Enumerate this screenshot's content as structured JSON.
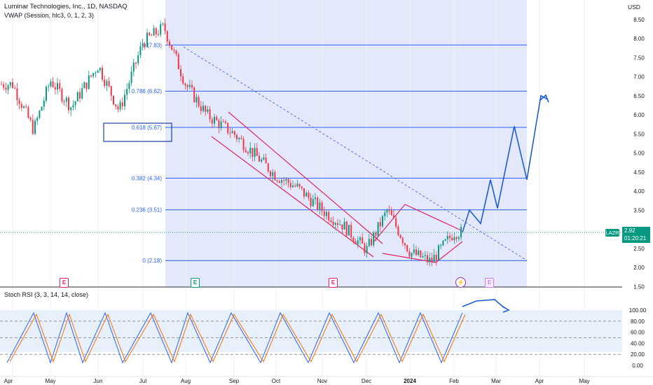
{
  "header": {
    "title": "Luminar Technologies, Inc., 1D, NASDAQ",
    "indicator": "VWAP (Session, hlc3, 0, 1, 2, 3)"
  },
  "currency": "USD",
  "price_axis": {
    "ticks": [
      "8.50",
      "8.00",
      "7.50",
      "7.00",
      "6.50",
      "6.00",
      "5.50",
      "5.00",
      "4.50",
      "4.00",
      "3.50",
      "3.00",
      "2.50",
      "2.00",
      "1.50"
    ]
  },
  "time_axis": {
    "labels": [
      "Apr",
      "May",
      "Jun",
      "Jul",
      "Aug",
      "Sep",
      "Oct",
      "Nov",
      "Dec",
      "2024",
      "Jan",
      "Feb",
      "Mar",
      "Apr",
      "May"
    ]
  },
  "symbol_tag": {
    "symbol": "LAZR",
    "price": "2.92",
    "countdown": "01:20:21",
    "color": "#089981"
  },
  "fib_levels": [
    {
      "label": "1 (7.83)",
      "value": 7.83
    },
    {
      "label": "0.786 (6.62)",
      "value": 6.62
    },
    {
      "label": "0.618 (5.67)",
      "value": 5.67
    },
    {
      "label": "0.382 (4.34)",
      "value": 4.34
    },
    {
      "label": "0.236 (3.51)",
      "value": 3.51
    },
    {
      "label": "0 (2.18)",
      "value": 2.18
    }
  ],
  "events": [
    {
      "label": "E",
      "color": "#e91e63",
      "style": "outline"
    },
    {
      "label": "E",
      "color": "#089981",
      "style": "outline"
    },
    {
      "label": "E",
      "color": "#e91e63",
      "style": "outline"
    },
    {
      "label": "⚡",
      "color": "#9c27b0",
      "style": "round"
    },
    {
      "label": "E",
      "color": "#c77dff",
      "style": "outline"
    }
  ],
  "stoch": {
    "title": "Stoch RSI (3, 3, 14, 14, close)",
    "ticks": [
      "100.00",
      "80.00",
      "60.00",
      "40.00",
      "20.00",
      "0.00"
    ]
  },
  "colors": {
    "up": "#089981",
    "down": "#f23645",
    "fib": "#2962ff",
    "zone": "#e3e8fb",
    "channel": "#e0245e",
    "forecast": "#1e5bd7",
    "k_line": "#2962ff",
    "d_line": "#ff6d00"
  },
  "chart_data": {
    "type": "candlestick",
    "title": "Luminar Technologies, Inc., 1D, NASDAQ",
    "ylim": [
      1.5,
      8.5
    ],
    "price_path": [
      [
        "Apr",
        6.8
      ],
      [
        "Apr",
        5.6
      ],
      [
        "May",
        6.9
      ],
      [
        "May",
        6.2
      ],
      [
        "Jun",
        7.3
      ],
      [
        "Jun",
        6.1
      ],
      [
        "Jul",
        7.9
      ],
      [
        "Jul",
        8.3
      ],
      [
        "Aug",
        6.8
      ],
      [
        "Aug",
        6.0
      ],
      [
        "Sep",
        5.5
      ],
      [
        "Oct",
        4.4
      ],
      [
        "Oct",
        4.1
      ],
      [
        "Nov",
        3.5
      ],
      [
        "Nov",
        3.1
      ],
      [
        "Dec",
        2.45
      ],
      [
        "Dec",
        3.5
      ],
      [
        "Jan",
        2.4
      ],
      [
        "Jan",
        2.15
      ],
      [
        "Feb",
        2.92
      ]
    ],
    "last_price": 2.92,
    "forecast_path": [
      2.92,
      3.5,
      3.15,
      4.3,
      3.55,
      5.7,
      4.3,
      6.5,
      6.4
    ],
    "stoch_ylim": [
      0,
      100
    ]
  }
}
